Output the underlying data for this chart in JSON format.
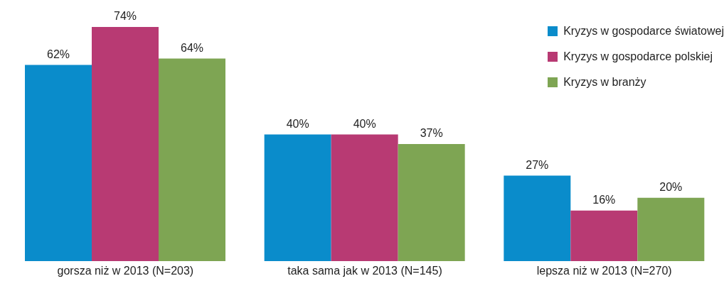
{
  "chart_data": {
    "type": "bar",
    "categories": [
      "gorsza niż w 2013 (N=203)",
      "taka sama jak w 2013 (N=145)",
      "lepsza niż w 2013 (N=270)"
    ],
    "legend": "top right",
    "series": [
      {
        "name": "Kryzys w gospodarce światowej",
        "color": "#0a8ccb",
        "values": [
          62,
          40,
          27
        ],
        "value_labels": [
          "62%",
          "40%",
          "27%"
        ]
      },
      {
        "name": "Kryzys w gospodarce polskiej",
        "color": "#b83a73",
        "values": [
          74,
          40,
          16
        ],
        "value_labels": [
          "74%",
          "40%",
          "16%"
        ]
      },
      {
        "name": "Kryzys w branży",
        "color": "#7ea553",
        "values": [
          64,
          37,
          20
        ],
        "value_labels": [
          "64%",
          "37%",
          "20%"
        ]
      }
    ]
  }
}
